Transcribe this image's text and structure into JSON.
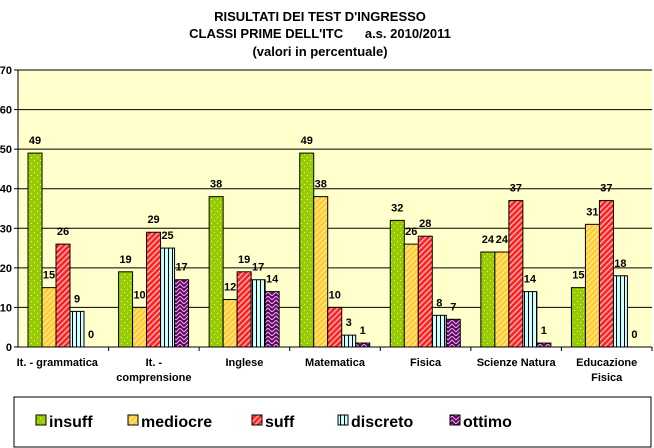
{
  "chart_data": {
    "type": "bar",
    "title": [
      "RISULTATI DEI TEST D'INGRESSO",
      "CLASSI PRIME DELL'ITC      a.s. 2010/2011",
      "(valori in percentuale)"
    ],
    "xlabel": "",
    "ylabel": "",
    "ylim": [
      0,
      70
    ],
    "yticks": [
      "0",
      "10",
      "20",
      "30",
      "40",
      "50",
      "60",
      "70"
    ],
    "grid": true,
    "legend_position": "bottom",
    "categories": [
      [
        "It. - grammatica"
      ],
      [
        "It. -",
        "comprensione"
      ],
      [
        "Inglese"
      ],
      [
        "Matematica"
      ],
      [
        "Fisica"
      ],
      [
        "Scienze Natura"
      ],
      [
        "Educazione",
        "Fisica"
      ]
    ],
    "series": [
      {
        "name": "insuff",
        "color": "#99CC00",
        "values": [
          49,
          19,
          38,
          49,
          32,
          24,
          15
        ]
      },
      {
        "name": "mediocre",
        "color": "#FFCC33",
        "values": [
          15,
          10,
          12,
          38,
          26,
          24,
          31
        ]
      },
      {
        "name": "suff",
        "color": "#FF2020",
        "values": [
          26,
          29,
          19,
          10,
          28,
          37,
          37
        ]
      },
      {
        "name": "discreto",
        "color": "#CCFFFF",
        "values": [
          9,
          25,
          17,
          3,
          8,
          14,
          18
        ]
      },
      {
        "name": "ottimo",
        "color": "#660066",
        "values": [
          0,
          17,
          14,
          1,
          7,
          1,
          0
        ]
      }
    ],
    "plot_background": "#FFFFCC"
  }
}
